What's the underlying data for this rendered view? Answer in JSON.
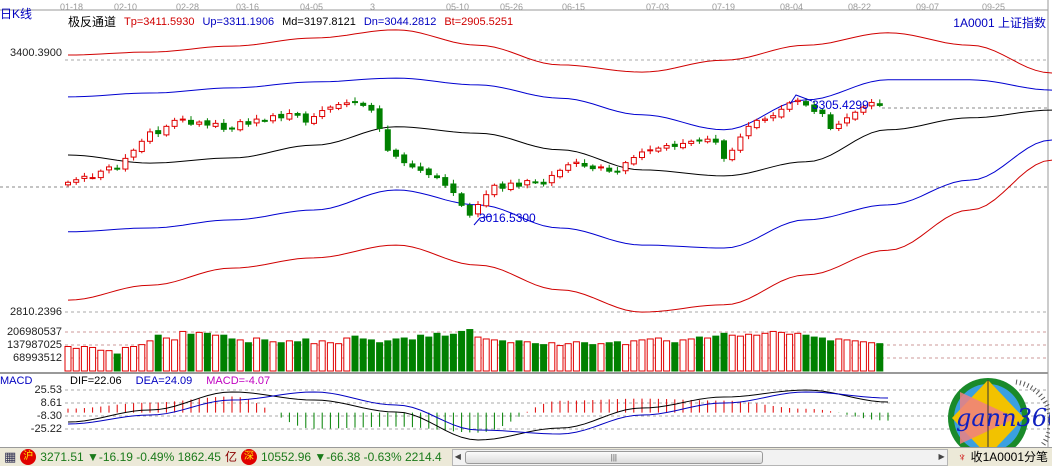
{
  "header": {
    "period_label": "日K线",
    "indicator_name": "极反通道",
    "tp": "Tp=3411.5930",
    "up": "Up=3311.1906",
    "md": "Md=3197.8121",
    "dn": "Dn=3044.2812",
    "bt": "Bt=2905.5251",
    "symbol": "1A0001  上证指数"
  },
  "dates": [
    "01-18",
    "02-10",
    "02-28",
    "03-16",
    "04-05",
    "3",
    "05-10",
    "05-26",
    "06-15",
    "07-03",
    "07-19",
    "08-04",
    "08-22",
    "09-07",
    "09-25"
  ],
  "price_axis": {
    "top": "3400.3900",
    "bottom": "2810.2396"
  },
  "volume_axis": [
    "206980537",
    "137987025",
    "68993512"
  ],
  "annotations": {
    "low": "3016.5300",
    "high": "3305.4299"
  },
  "macd": {
    "title": "MACD",
    "dif": "DIF=22.06",
    "dea": "DEA=24.09",
    "macd": "MACD=-4.07",
    "axis": [
      "25.53",
      "8.61",
      "-8.30",
      "-25.22"
    ]
  },
  "status": {
    "sh_badge": "沪",
    "sh_text": "3271.51 ▼-16.19 -0.49% 1862.45",
    "yi": "亿",
    "sz_badge": "深",
    "sz_text": "10552.96 ▼-66.38 -0.63% 2214.4",
    "scroll_grip": "|||",
    "right_text": "收1A0001分笔"
  },
  "logo": {
    "text": "gann360"
  },
  "colors": {
    "up": "#e00000",
    "down": "#008000",
    "band_outer": "#d00000",
    "band_inner": "#0000d0",
    "mid": "#000000"
  },
  "chart_data": {
    "type": "candlestick",
    "price_range": [
      2810.2396,
      3400.39
    ],
    "closes": [
      3114,
      3120,
      3128,
      3125,
      3140,
      3150,
      3145,
      3170,
      3189,
      3210,
      3232,
      3228,
      3245,
      3259,
      3262,
      3250,
      3255,
      3248,
      3252,
      3238,
      3240,
      3256,
      3250,
      3262,
      3258,
      3270,
      3265,
      3275,
      3271,
      3255,
      3268,
      3282,
      3290,
      3296,
      3300,
      3302,
      3294,
      3283,
      3240,
      3189,
      3175,
      3160,
      3150,
      3142,
      3132,
      3125,
      3107,
      3090,
      3060,
      3037,
      3062,
      3085,
      3107,
      3100,
      3112,
      3105,
      3118,
      3114,
      3110,
      3130,
      3142,
      3155,
      3161,
      3152,
      3146,
      3150,
      3140,
      3138,
      3160,
      3172,
      3185,
      3190,
      3194,
      3200,
      3198,
      3205,
      3210,
      3212,
      3215,
      3208,
      3170,
      3189,
      3220,
      3245,
      3259,
      3262,
      3270,
      3285,
      3300,
      3306,
      3295,
      3280,
      3275,
      3240,
      3250,
      3265,
      3278,
      3290,
      3301,
      3294
    ],
    "volumes_million": [
      130,
      120,
      130,
      125,
      110,
      108,
      90,
      125,
      130,
      140,
      160,
      190,
      175,
      165,
      210,
      195,
      205,
      200,
      190,
      190,
      170,
      165,
      150,
      175,
      165,
      155,
      150,
      160,
      155,
      170,
      145,
      160,
      150,
      145,
      175,
      185,
      170,
      165,
      150,
      160,
      170,
      175,
      165,
      190,
      180,
      200,
      185,
      195,
      210,
      220,
      180,
      170,
      165,
      160,
      150,
      160,
      155,
      145,
      140,
      150,
      135,
      145,
      155,
      150,
      140,
      145,
      150,
      155,
      140,
      160,
      165,
      170,
      175,
      160,
      150,
      165,
      170,
      180,
      175,
      185,
      200,
      190,
      185,
      195,
      190,
      200,
      210,
      205,
      195,
      200,
      190,
      180,
      175,
      160,
      170,
      165,
      160,
      155,
      150,
      145
    ],
    "bands_index_step": 10,
    "bands": {
      "Tp": [
        3412,
        3419,
        3433,
        3452,
        3471,
        3435,
        3389,
        3372,
        3400,
        3435,
        3464,
        3435,
        3370
      ],
      "Up": [
        3314,
        3323,
        3335,
        3349,
        3358,
        3342,
        3311,
        3272,
        3237,
        3307,
        3354,
        3354,
        3330
      ],
      "Md": [
        3178,
        3159,
        3171,
        3201,
        3244,
        3229,
        3190,
        3143,
        3129,
        3162,
        3237,
        3265,
        3283
      ],
      "Dn": [
        2998,
        3007,
        3026,
        3049,
        3096,
        3061,
        3007,
        2967,
        2960,
        3026,
        3061,
        3119,
        3213
      ],
      "Bt": [
        2838,
        2873,
        2913,
        2937,
        2967,
        2920,
        2862,
        2810,
        2827,
        2897,
        2955,
        3049,
        3166
      ]
    },
    "macd_index_step": 10,
    "dif": [
      -16.1,
      -0.5,
      23,
      12.5,
      -3.1,
      -39.5,
      -24,
      2.1,
      16.4,
      25.5,
      9.9
    ],
    "dea": [
      -18.7,
      -7,
      12.5,
      23,
      6,
      -26.5,
      -31.7,
      -7,
      8.6,
      23,
      15.1
    ],
    "macd_range": [
      -42,
      32
    ]
  }
}
